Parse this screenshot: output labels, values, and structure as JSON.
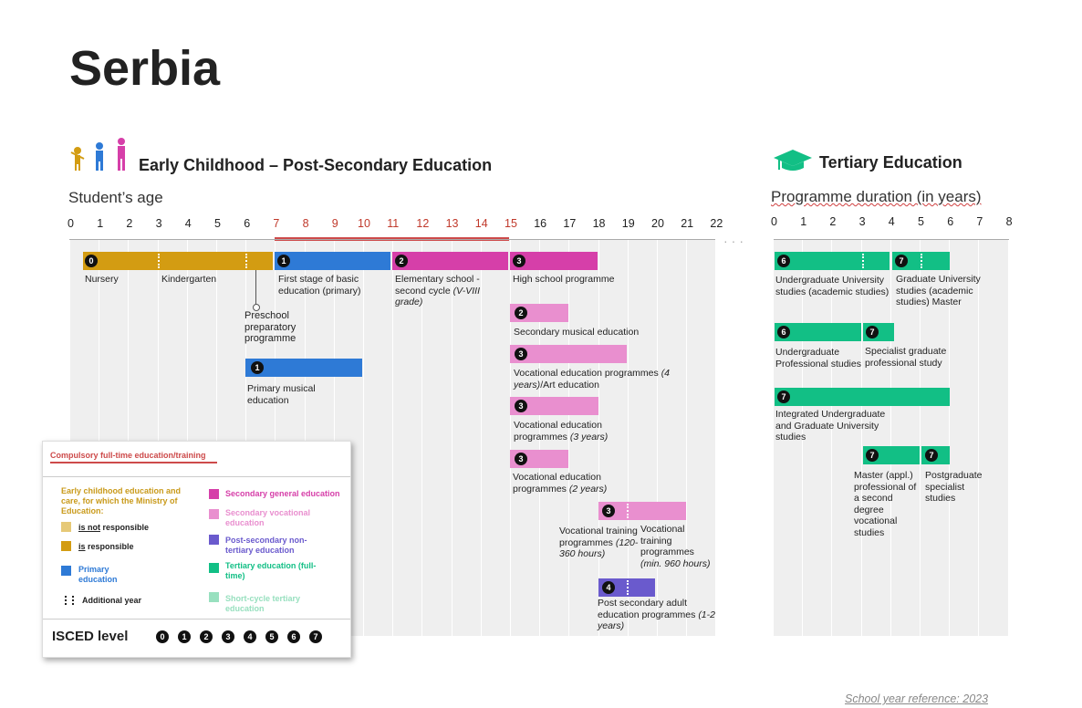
{
  "title": "Serbia",
  "left_section": {
    "title": "Early Childhood – Post-Secondary Education",
    "icon": "children-icon",
    "axis_label": "Student’s age",
    "ticks": [
      "0",
      "1",
      "2",
      "3",
      "4",
      "5",
      "6",
      "7",
      "8",
      "9",
      "10",
      "11",
      "12",
      "13",
      "14",
      "15",
      "16",
      "17",
      "18",
      "19",
      "20",
      "21",
      "22"
    ],
    "compulsory_range": [
      7,
      15
    ]
  },
  "right_section": {
    "title": "Tertiary Education",
    "icon": "graduation-cap-icon",
    "axis_label": "Programme duration (in years)",
    "ticks": [
      "0",
      "1",
      "2",
      "3",
      "4",
      "5",
      "6",
      "7",
      "8"
    ]
  },
  "colors": {
    "nursery": "#d39c12",
    "primary": "#2e7ad6",
    "secondary_general": "#d63fa9",
    "secondary_vocational": "#e98fcf",
    "post_secondary": "#6a5acd",
    "tertiary": "#12bf85",
    "compulsory": "#cd4a4a"
  },
  "programmes": {
    "nursery": {
      "isced": "0",
      "label": "Nursery"
    },
    "kindergarten": {
      "label": "Kindergarten"
    },
    "preschool": {
      "label": "Preschool preparatory programme"
    },
    "primary1": {
      "isced": "1",
      "label": "First stage of basic education (primary)"
    },
    "elementary2": {
      "isced": "2",
      "label_main": "Elementary school - second cycle ",
      "label_italic": "(V-VIII grade)"
    },
    "high_school": {
      "isced": "3",
      "label": "High school programme"
    },
    "musical_primary": {
      "isced": "1",
      "label": "Primary musical education"
    },
    "musical_secondary": {
      "isced": "2",
      "label": "Secondary musical education"
    },
    "voc4": {
      "isced": "3",
      "label_main": "Vocational education programmes ",
      "label_italic": "(4 years)",
      "label_tail": "/Art education"
    },
    "voc3": {
      "isced": "3",
      "label_main": "Vocational education programmes ",
      "label_italic": "(3 years)"
    },
    "voc2": {
      "isced": "3",
      "label_main": "Vocational education programmes ",
      "label_italic": "(2 years)"
    },
    "training_short": {
      "isced": "3",
      "label_main": "Vocational training programmes ",
      "label_italic": "(120-360 hours)"
    },
    "training_long": {
      "label_main": "Vocational training programmes ",
      "label_italic": "(min. 960 hours)"
    },
    "adult": {
      "isced": "4",
      "label_main": "Post secondary adult education programmes ",
      "label_italic": "(1-2 years)"
    }
  },
  "tertiary": {
    "ug_academic": {
      "isced": "6",
      "label": "Undergraduate University studies (academic studies)"
    },
    "grad_academic": {
      "isced": "7",
      "label": "Graduate University studies (academic studies) Master"
    },
    "ug_professional": {
      "isced": "6",
      "label": "Undergraduate Professional studies"
    },
    "specialist": {
      "isced": "7",
      "label": "Specialist graduate professional study"
    },
    "integrated": {
      "isced": "7",
      "label": "Integrated Undergraduate and Graduate University studies"
    },
    "master_applied": {
      "isced": "7",
      "label": "Master (appl.) professional of a second degree vocational studies"
    },
    "postgrad_specialist": {
      "isced": "7",
      "label": "Postgraduate specialist studies"
    }
  },
  "legend": {
    "compulsory": "Compulsory full-time education/training",
    "ecec_header": "Early childhood education and care, for which the  Ministry of Education:",
    "not_responsible": [
      "is not",
      " responsible"
    ],
    "responsible": [
      "is",
      " responsible"
    ],
    "primary": "Primary education",
    "additional_year": "Additional year",
    "secondary_general": "Secondary general education",
    "secondary_vocational": "Secondary vocational education",
    "post_secondary": "Post-secondary non-tertiary education",
    "tertiary": "Tertiary education (full-time)",
    "short_cycle": "Short-cycle tertiary education",
    "isced_label": "ISCED level",
    "isced_levels": [
      "0",
      "1",
      "2",
      "3",
      "4",
      "5",
      "6",
      "7"
    ],
    "swatch_colors": {
      "not_responsible": "#e6c977",
      "responsible": "#d39c12",
      "primary": "#2e7ad6",
      "secondary_general": "#d63fa9",
      "secondary_vocational": "#e98fcf",
      "post_secondary": "#6a5acd",
      "tertiary": "#12bf85",
      "short_cycle": "#98e0bf"
    }
  },
  "footer": "School year reference: 2023"
}
